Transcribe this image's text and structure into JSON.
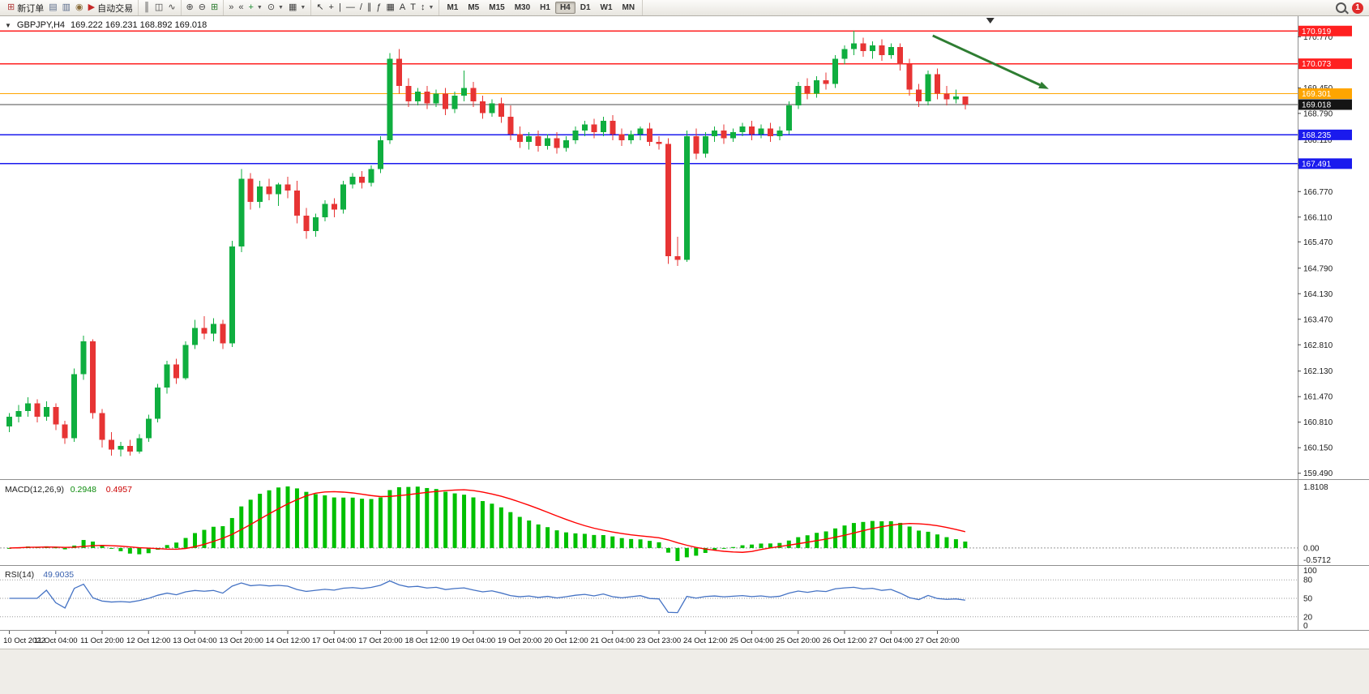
{
  "window": {
    "notification_count": "1"
  },
  "toolbar": {
    "groups": [
      {
        "name": "standard",
        "items": [
          {
            "name": "new-order",
            "glyph": "⊞",
            "color": "#b23b3b",
            "label": "新订单"
          },
          {
            "name": "print",
            "glyph": "▤",
            "color": "#5a6b8a"
          },
          {
            "name": "print-preview",
            "glyph": "▥",
            "color": "#5a6b8a"
          },
          {
            "name": "news",
            "glyph": "◉",
            "color": "#8a6d3b"
          },
          {
            "name": "autotrade",
            "glyph": "▶",
            "color": "#c62828",
            "label": "自动交易"
          }
        ]
      },
      {
        "name": "chart-type",
        "items": [
          {
            "name": "bar-chart",
            "glyph": "║",
            "color": "#444"
          },
          {
            "name": "candlestick-chart",
            "glyph": "◫",
            "color": "#444"
          },
          {
            "name": "line-chart",
            "glyph": "∿",
            "color": "#444"
          }
        ]
      },
      {
        "name": "zoom",
        "items": [
          {
            "name": "zoom-in",
            "glyph": "⊕",
            "color": "#444"
          },
          {
            "name": "zoom-out",
            "glyph": "⊖",
            "color": "#444"
          },
          {
            "name": "tile-windows",
            "glyph": "⊞",
            "color": "#2e7d32"
          }
        ]
      },
      {
        "name": "chart-tools",
        "items": [
          {
            "name": "auto-scroll",
            "glyph": "»",
            "color": "#444"
          },
          {
            "name": "chart-shift",
            "glyph": "«",
            "color": "#444"
          },
          {
            "name": "add-indicator",
            "glyph": "+",
            "color": "#1b8a2f",
            "dd": true
          },
          {
            "name": "periods",
            "glyph": "⊙",
            "color": "#444",
            "dd": true
          },
          {
            "name": "templates",
            "glyph": "▦",
            "color": "#444",
            "dd": true
          }
        ]
      },
      {
        "name": "line-studies",
        "items": [
          {
            "name": "cursor",
            "glyph": "↖",
            "color": "#333"
          },
          {
            "name": "crosshair",
            "glyph": "+",
            "color": "#333"
          },
          {
            "name": "vertical-line",
            "glyph": "|",
            "color": "#333"
          },
          {
            "name": "horizontal-line",
            "glyph": "—",
            "color": "#333"
          },
          {
            "name": "trendline",
            "glyph": "/",
            "color": "#333"
          },
          {
            "name": "equidistant-channel",
            "glyph": "∥",
            "color": "#333"
          },
          {
            "name": "fibonacci",
            "glyph": "ƒ",
            "color": "#333"
          },
          {
            "name": "shapes",
            "glyph": "▦",
            "color": "#333"
          },
          {
            "name": "text",
            "glyph": "A",
            "color": "#333"
          },
          {
            "name": "text-label",
            "glyph": "T",
            "color": "#333"
          },
          {
            "name": "arrows",
            "glyph": "↕",
            "color": "#333",
            "dd": true
          }
        ]
      }
    ],
    "timeframes": [
      "M1",
      "M5",
      "M15",
      "M30",
      "H1",
      "H4",
      "D1",
      "W1",
      "MN"
    ],
    "active_timeframe": "H4"
  },
  "chart_header": {
    "dropdown_icon": "▼",
    "symbol": "GBPJPY,H4",
    "ohlc": "169.222 169.231 168.892 169.018"
  },
  "chart_data": {
    "type": "candlestick",
    "symbol": "GBPJPY",
    "timeframe": "H4",
    "price_range": [
      159.4,
      171.05
    ],
    "label_every": 5,
    "colors": {
      "up": "#0fae3f",
      "down": "#e73434",
      "background": "#ffffff"
    },
    "ohlc": [
      [
        160.7,
        161.05,
        160.55,
        160.95
      ],
      [
        160.95,
        161.25,
        160.8,
        161.1
      ],
      [
        161.1,
        161.45,
        160.95,
        161.3
      ],
      [
        161.3,
        161.4,
        160.8,
        160.95
      ],
      [
        160.95,
        161.35,
        160.85,
        161.2
      ],
      [
        161.2,
        161.3,
        160.6,
        160.75
      ],
      [
        160.75,
        160.85,
        160.25,
        160.4
      ],
      [
        160.4,
        162.2,
        160.3,
        162.05
      ],
      [
        162.05,
        163.05,
        161.9,
        162.9
      ],
      [
        162.9,
        162.95,
        160.9,
        161.05
      ],
      [
        161.05,
        161.15,
        160.15,
        160.35
      ],
      [
        160.35,
        160.55,
        159.95,
        160.1
      ],
      [
        160.1,
        160.3,
        159.92,
        160.2
      ],
      [
        160.2,
        160.35,
        159.95,
        160.05
      ],
      [
        160.05,
        160.5,
        160.0,
        160.4
      ],
      [
        160.4,
        161.0,
        160.3,
        160.9
      ],
      [
        160.9,
        161.8,
        160.8,
        161.7
      ],
      [
        161.7,
        162.4,
        161.55,
        162.3
      ],
      [
        162.3,
        162.45,
        161.8,
        161.95
      ],
      [
        161.95,
        162.9,
        161.9,
        162.8
      ],
      [
        162.8,
        163.45,
        162.7,
        163.25
      ],
      [
        163.25,
        163.55,
        162.95,
        163.1
      ],
      [
        163.1,
        163.5,
        162.9,
        163.35
      ],
      [
        163.35,
        163.45,
        162.7,
        162.85
      ],
      [
        162.85,
        165.5,
        162.75,
        165.35
      ],
      [
        165.35,
        167.35,
        165.2,
        167.1
      ],
      [
        167.1,
        167.25,
        166.3,
        166.5
      ],
      [
        166.5,
        167.05,
        166.35,
        166.9
      ],
      [
        166.9,
        167.1,
        166.55,
        166.7
      ],
      [
        166.7,
        167.0,
        166.4,
        166.95
      ],
      [
        166.95,
        167.15,
        166.6,
        166.8
      ],
      [
        166.8,
        167.05,
        165.95,
        166.15
      ],
      [
        166.15,
        166.35,
        165.55,
        165.75
      ],
      [
        165.75,
        166.2,
        165.6,
        166.1
      ],
      [
        166.1,
        166.55,
        166.0,
        166.45
      ],
      [
        166.45,
        166.6,
        166.1,
        166.3
      ],
      [
        166.3,
        167.05,
        166.2,
        166.95
      ],
      [
        166.95,
        167.25,
        166.85,
        167.15
      ],
      [
        167.15,
        167.3,
        166.85,
        167.0
      ],
      [
        167.0,
        167.45,
        166.9,
        167.35
      ],
      [
        167.35,
        168.2,
        167.25,
        168.1
      ],
      [
        168.1,
        170.35,
        168.0,
        170.2
      ],
      [
        170.2,
        170.45,
        169.3,
        169.5
      ],
      [
        169.5,
        169.7,
        168.95,
        169.1
      ],
      [
        169.1,
        169.45,
        169.0,
        169.35
      ],
      [
        169.35,
        169.5,
        168.9,
        169.05
      ],
      [
        169.05,
        169.4,
        168.95,
        169.3
      ],
      [
        169.3,
        169.45,
        168.75,
        168.9
      ],
      [
        168.9,
        169.35,
        168.8,
        169.25
      ],
      [
        169.25,
        169.9,
        169.1,
        169.45
      ],
      [
        169.45,
        169.6,
        168.95,
        169.1
      ],
      [
        169.1,
        169.25,
        168.65,
        168.8
      ],
      [
        168.8,
        169.15,
        168.7,
        169.05
      ],
      [
        169.05,
        169.2,
        168.55,
        168.7
      ],
      [
        168.7,
        169.0,
        168.1,
        168.25
      ],
      [
        168.25,
        168.45,
        167.9,
        168.05
      ],
      [
        168.05,
        168.3,
        167.85,
        168.2
      ],
      [
        168.2,
        168.35,
        167.8,
        167.95
      ],
      [
        167.95,
        168.25,
        167.85,
        168.15
      ],
      [
        168.15,
        168.3,
        167.75,
        167.9
      ],
      [
        167.9,
        168.2,
        167.8,
        168.1
      ],
      [
        168.1,
        168.45,
        168.0,
        168.35
      ],
      [
        168.35,
        168.6,
        168.2,
        168.5
      ],
      [
        168.5,
        168.65,
        168.15,
        168.3
      ],
      [
        168.3,
        168.7,
        168.2,
        168.6
      ],
      [
        168.6,
        168.75,
        168.1,
        168.25
      ],
      [
        168.25,
        168.4,
        167.95,
        168.1
      ],
      [
        168.1,
        168.35,
        168.0,
        168.25
      ],
      [
        168.25,
        168.45,
        168.1,
        168.4
      ],
      [
        168.4,
        168.55,
        167.95,
        168.05
      ],
      [
        168.05,
        168.2,
        167.85,
        168.0
      ],
      [
        168.0,
        168.15,
        164.9,
        165.1
      ],
      [
        165.1,
        165.6,
        164.85,
        165.0
      ],
      [
        165.0,
        168.35,
        164.95,
        168.2
      ],
      [
        168.2,
        168.4,
        167.6,
        167.75
      ],
      [
        167.75,
        168.3,
        167.65,
        168.2
      ],
      [
        168.2,
        168.45,
        168.05,
        168.35
      ],
      [
        168.35,
        168.5,
        168.0,
        168.15
      ],
      [
        168.15,
        168.4,
        168.05,
        168.3
      ],
      [
        168.3,
        168.55,
        168.2,
        168.45
      ],
      [
        168.45,
        168.6,
        168.1,
        168.25
      ],
      [
        168.25,
        168.5,
        168.15,
        168.4
      ],
      [
        168.4,
        168.55,
        168.05,
        168.2
      ],
      [
        168.2,
        168.45,
        168.1,
        168.35
      ],
      [
        168.35,
        169.1,
        168.25,
        169.0
      ],
      [
        169.0,
        169.6,
        168.9,
        169.5
      ],
      [
        169.5,
        169.7,
        169.15,
        169.3
      ],
      [
        169.3,
        169.75,
        169.2,
        169.65
      ],
      [
        169.65,
        169.85,
        169.4,
        169.55
      ],
      [
        169.55,
        170.3,
        169.45,
        170.2
      ],
      [
        170.2,
        170.55,
        170.05,
        170.45
      ],
      [
        170.45,
        170.92,
        170.3,
        170.6
      ],
      [
        170.6,
        170.75,
        170.25,
        170.4
      ],
      [
        170.4,
        170.65,
        170.2,
        170.55
      ],
      [
        170.55,
        170.7,
        170.15,
        170.3
      ],
      [
        170.3,
        170.6,
        170.2,
        170.5
      ],
      [
        170.5,
        170.6,
        169.9,
        170.05
      ],
      [
        170.05,
        170.2,
        169.25,
        169.4
      ],
      [
        169.4,
        169.55,
        168.95,
        169.1
      ],
      [
        169.1,
        169.9,
        169.0,
        169.8
      ],
      [
        169.8,
        169.95,
        169.15,
        169.3
      ],
      [
        169.3,
        169.5,
        169.0,
        169.15
      ],
      [
        169.15,
        169.4,
        169.05,
        169.222
      ],
      [
        169.222,
        169.231,
        168.892,
        169.018
      ]
    ],
    "time_labels": [
      "10 Oct 2022",
      "11 Oct 04:00",
      "11 Oct 20:00",
      "12 Oct 12:00",
      "13 Oct 04:00",
      "13 Oct 20:00",
      "14 Oct 12:00",
      "17 Oct 04:00",
      "17 Oct 20:00",
      "18 Oct 12:00",
      "19 Oct 04:00",
      "19 Oct 20:00",
      "20 Oct 12:00",
      "21 Oct 04:00",
      "23 Oct 23:00",
      "24 Oct 12:00",
      "25 Oct 04:00",
      "25 Oct 20:00",
      "26 Oct 12:00",
      "27 Oct 04:00",
      "27 Oct 20:00"
    ],
    "price_ticks": [
      "170.770",
      "169.450",
      "168.790",
      "168.110",
      "167.450",
      "166.770",
      "166.110",
      "165.470",
      "164.790",
      "164.130",
      "163.470",
      "162.810",
      "162.130",
      "161.470",
      "160.810",
      "160.150",
      "159.490"
    ],
    "levels": [
      {
        "value": 170.919,
        "label": "170.919",
        "color": "#ff2020",
        "type": "resistance"
      },
      {
        "value": 170.073,
        "label": "170.073",
        "color": "#ff2020",
        "type": "resistance"
      },
      {
        "value": 169.301,
        "label": "169.301",
        "color": "#ffa500",
        "type": "level"
      },
      {
        "value": 169.018,
        "label": "169.018",
        "color": "#4d4d4d",
        "badge": "#141414",
        "type": "current-price"
      },
      {
        "value": 168.235,
        "label": "168.235",
        "color": "#1a1aee",
        "type": "support"
      },
      {
        "value": 167.491,
        "label": "167.491",
        "color": "#1a1aee",
        "type": "support"
      }
    ],
    "annotation_arrow": {
      "idx1": 99.5,
      "price1": 170.8,
      "idx2": 112,
      "price2": 169.42,
      "color": "#2e7d32"
    },
    "shift_marker_idx": 105.7,
    "indicators": {
      "macd": {
        "label": "MACD(12,26,9)",
        "value_main": "0.2948",
        "value_signal": "0.4957",
        "fast": 12,
        "slow": 26,
        "signal": 9,
        "scale_labels": [
          "1.8108",
          "0.00",
          "-0.5712"
        ],
        "histogram_color": "#00c000",
        "signal_color": "#ff0000"
      },
      "rsi": {
        "label": "RSI(14)",
        "value": "49.9035",
        "period": 14,
        "levels": [
          80,
          50,
          20
        ],
        "scale_labels": [
          "100",
          "80",
          "50",
          "20",
          "0"
        ],
        "line_color": "#4472c4"
      }
    }
  }
}
